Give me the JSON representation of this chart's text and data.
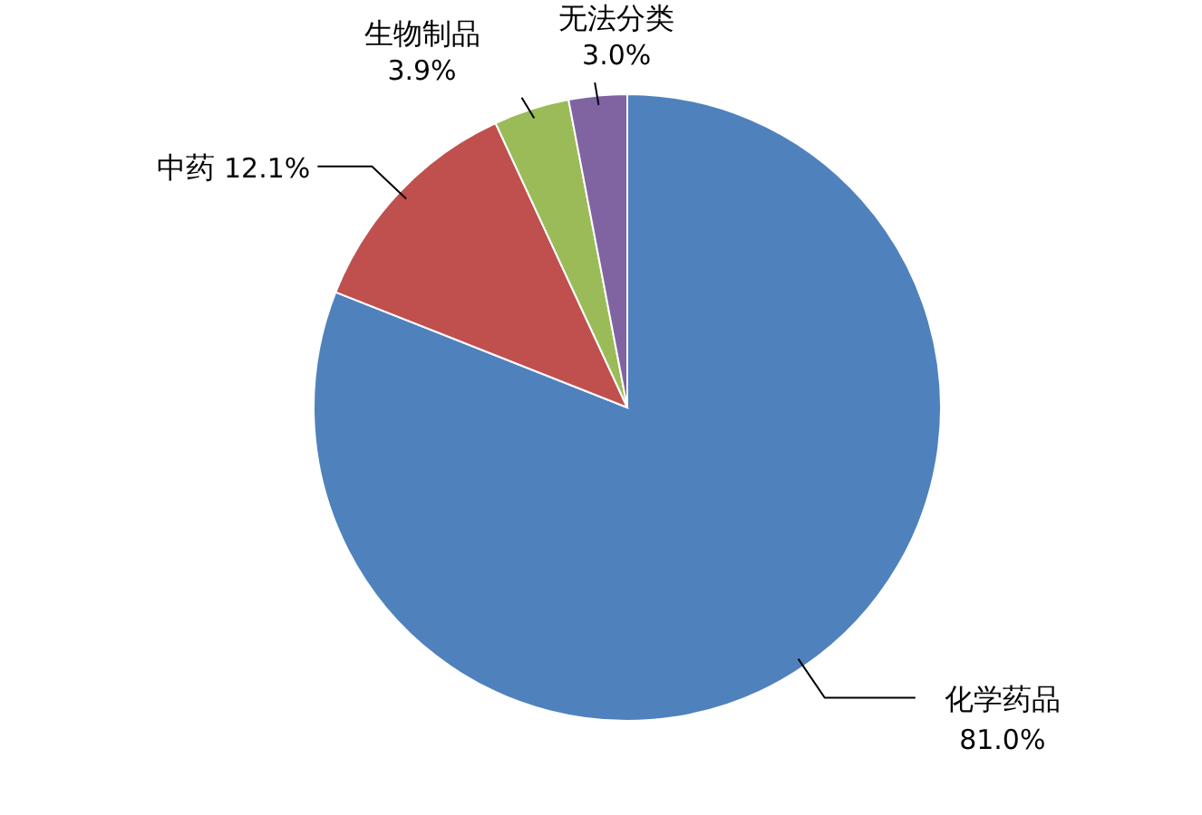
{
  "chart_data": {
    "type": "pie",
    "categories": [
      "化学药品",
      "中药",
      "生物制品",
      "无法分类"
    ],
    "values": [
      81.0,
      12.1,
      3.9,
      3.0
    ],
    "colors": [
      "#4f81bd",
      "#c0504d",
      "#9bbb59",
      "#8064a2"
    ],
    "value_labels": [
      "81.0%",
      "12.1%",
      "3.9%",
      "3.0%"
    ]
  }
}
